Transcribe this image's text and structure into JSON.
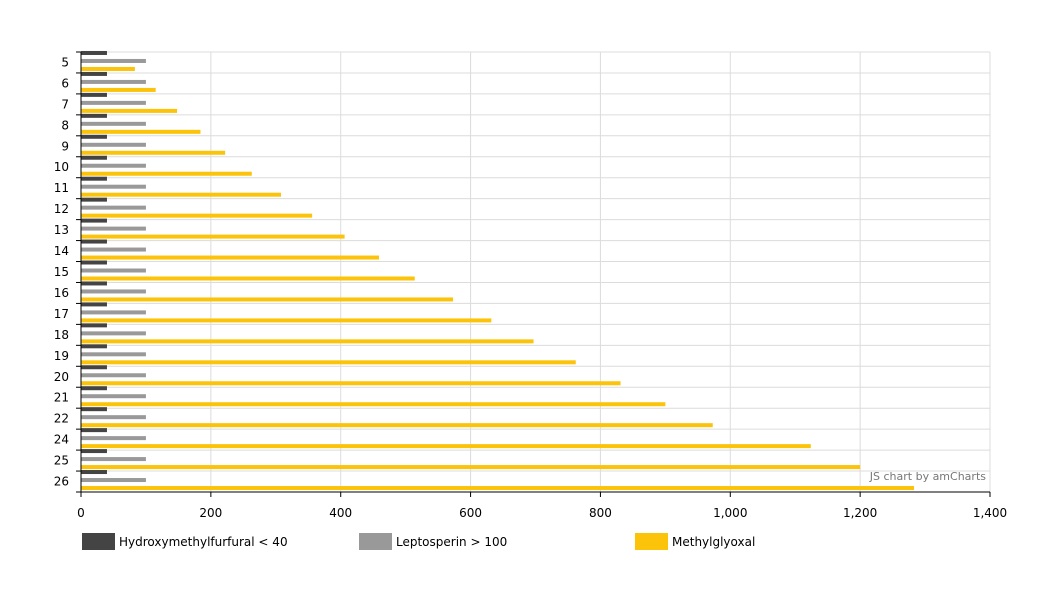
{
  "chart_data": {
    "type": "bar",
    "orientation": "horizontal",
    "categories": [
      "5",
      "6",
      "7",
      "8",
      "9",
      "10",
      "11",
      "12",
      "13",
      "14",
      "15",
      "16",
      "17",
      "18",
      "19",
      "20",
      "21",
      "22",
      "24",
      "25",
      "26"
    ],
    "series": [
      {
        "name": "Hydroxymethylfurfural < 40",
        "color": "#444444",
        "values": [
          40,
          40,
          40,
          40,
          40,
          40,
          40,
          40,
          40,
          40,
          40,
          40,
          40,
          40,
          40,
          40,
          40,
          40,
          40,
          40,
          40
        ]
      },
      {
        "name": "Leptosperin > 100",
        "color": "#999999",
        "values": [
          100,
          100,
          100,
          100,
          100,
          100,
          100,
          100,
          100,
          100,
          100,
          100,
          100,
          100,
          100,
          100,
          100,
          100,
          100,
          100,
          100
        ]
      },
      {
        "name": "Methylglyoxal",
        "color": "#FCC30B",
        "values": [
          83,
          115,
          148,
          184,
          222,
          263,
          308,
          356,
          406,
          459,
          514,
          573,
          632,
          697,
          762,
          831,
          900,
          973,
          1124,
          1200,
          1283
        ]
      }
    ],
    "xlim": [
      0,
      1400
    ],
    "x_ticks": [
      0,
      200,
      400,
      600,
      800,
      1000,
      1200,
      1400
    ],
    "x_tick_labels": [
      "0",
      "200",
      "400",
      "600",
      "800",
      "1,000",
      "1,200",
      "1,400"
    ],
    "grid": true,
    "legend_position": "bottom",
    "title": "",
    "xlabel": "",
    "ylabel": ""
  },
  "credit": "JS chart by amCharts"
}
